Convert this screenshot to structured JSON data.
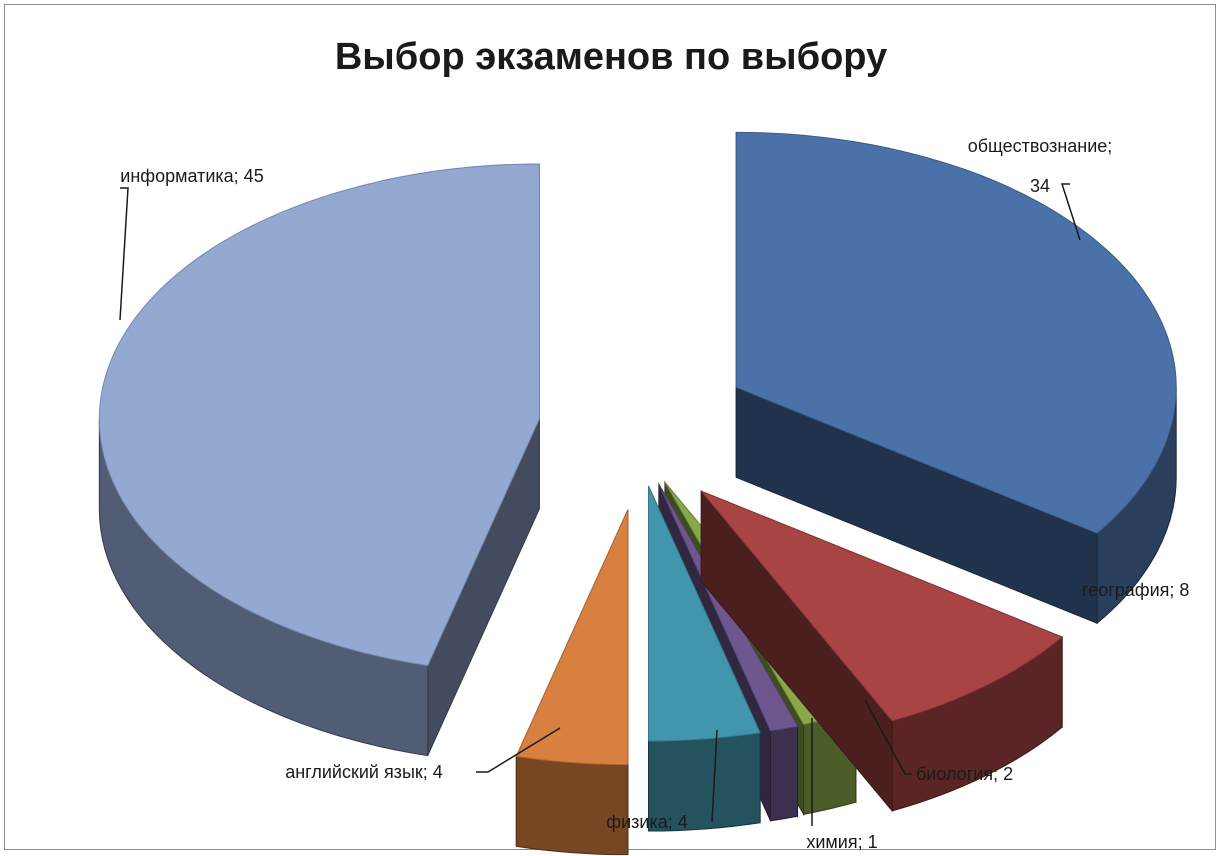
{
  "chart_data": {
    "type": "pie",
    "variant": "3d-exploded",
    "title": "Выбор экзаменов по выбору",
    "slices": [
      {
        "label": "обществознание",
        "value": 34,
        "color": "#4a72a8",
        "text": "обществознание;",
        "text2": "34"
      },
      {
        "label": "география",
        "value": 8,
        "color": "#a84444",
        "text": "география; 8"
      },
      {
        "label": "биология",
        "value": 2,
        "color": "#8aa84a",
        "text": "биология; 2"
      },
      {
        "label": "химия",
        "value": 1,
        "color": "#6e578f",
        "text": "химия; 1"
      },
      {
        "label": "физика",
        "value": 4,
        "color": "#4196ad",
        "text": "физика; 4"
      },
      {
        "label": "английский язык",
        "value": 4,
        "color": "#d88040",
        "text": "английский язык; 4"
      },
      {
        "label": "информатика",
        "value": 45,
        "color": "#94a9d2",
        "text": "информатика; 45"
      }
    ],
    "legend": "none",
    "data_labels": "outside-with-leader-lines"
  }
}
